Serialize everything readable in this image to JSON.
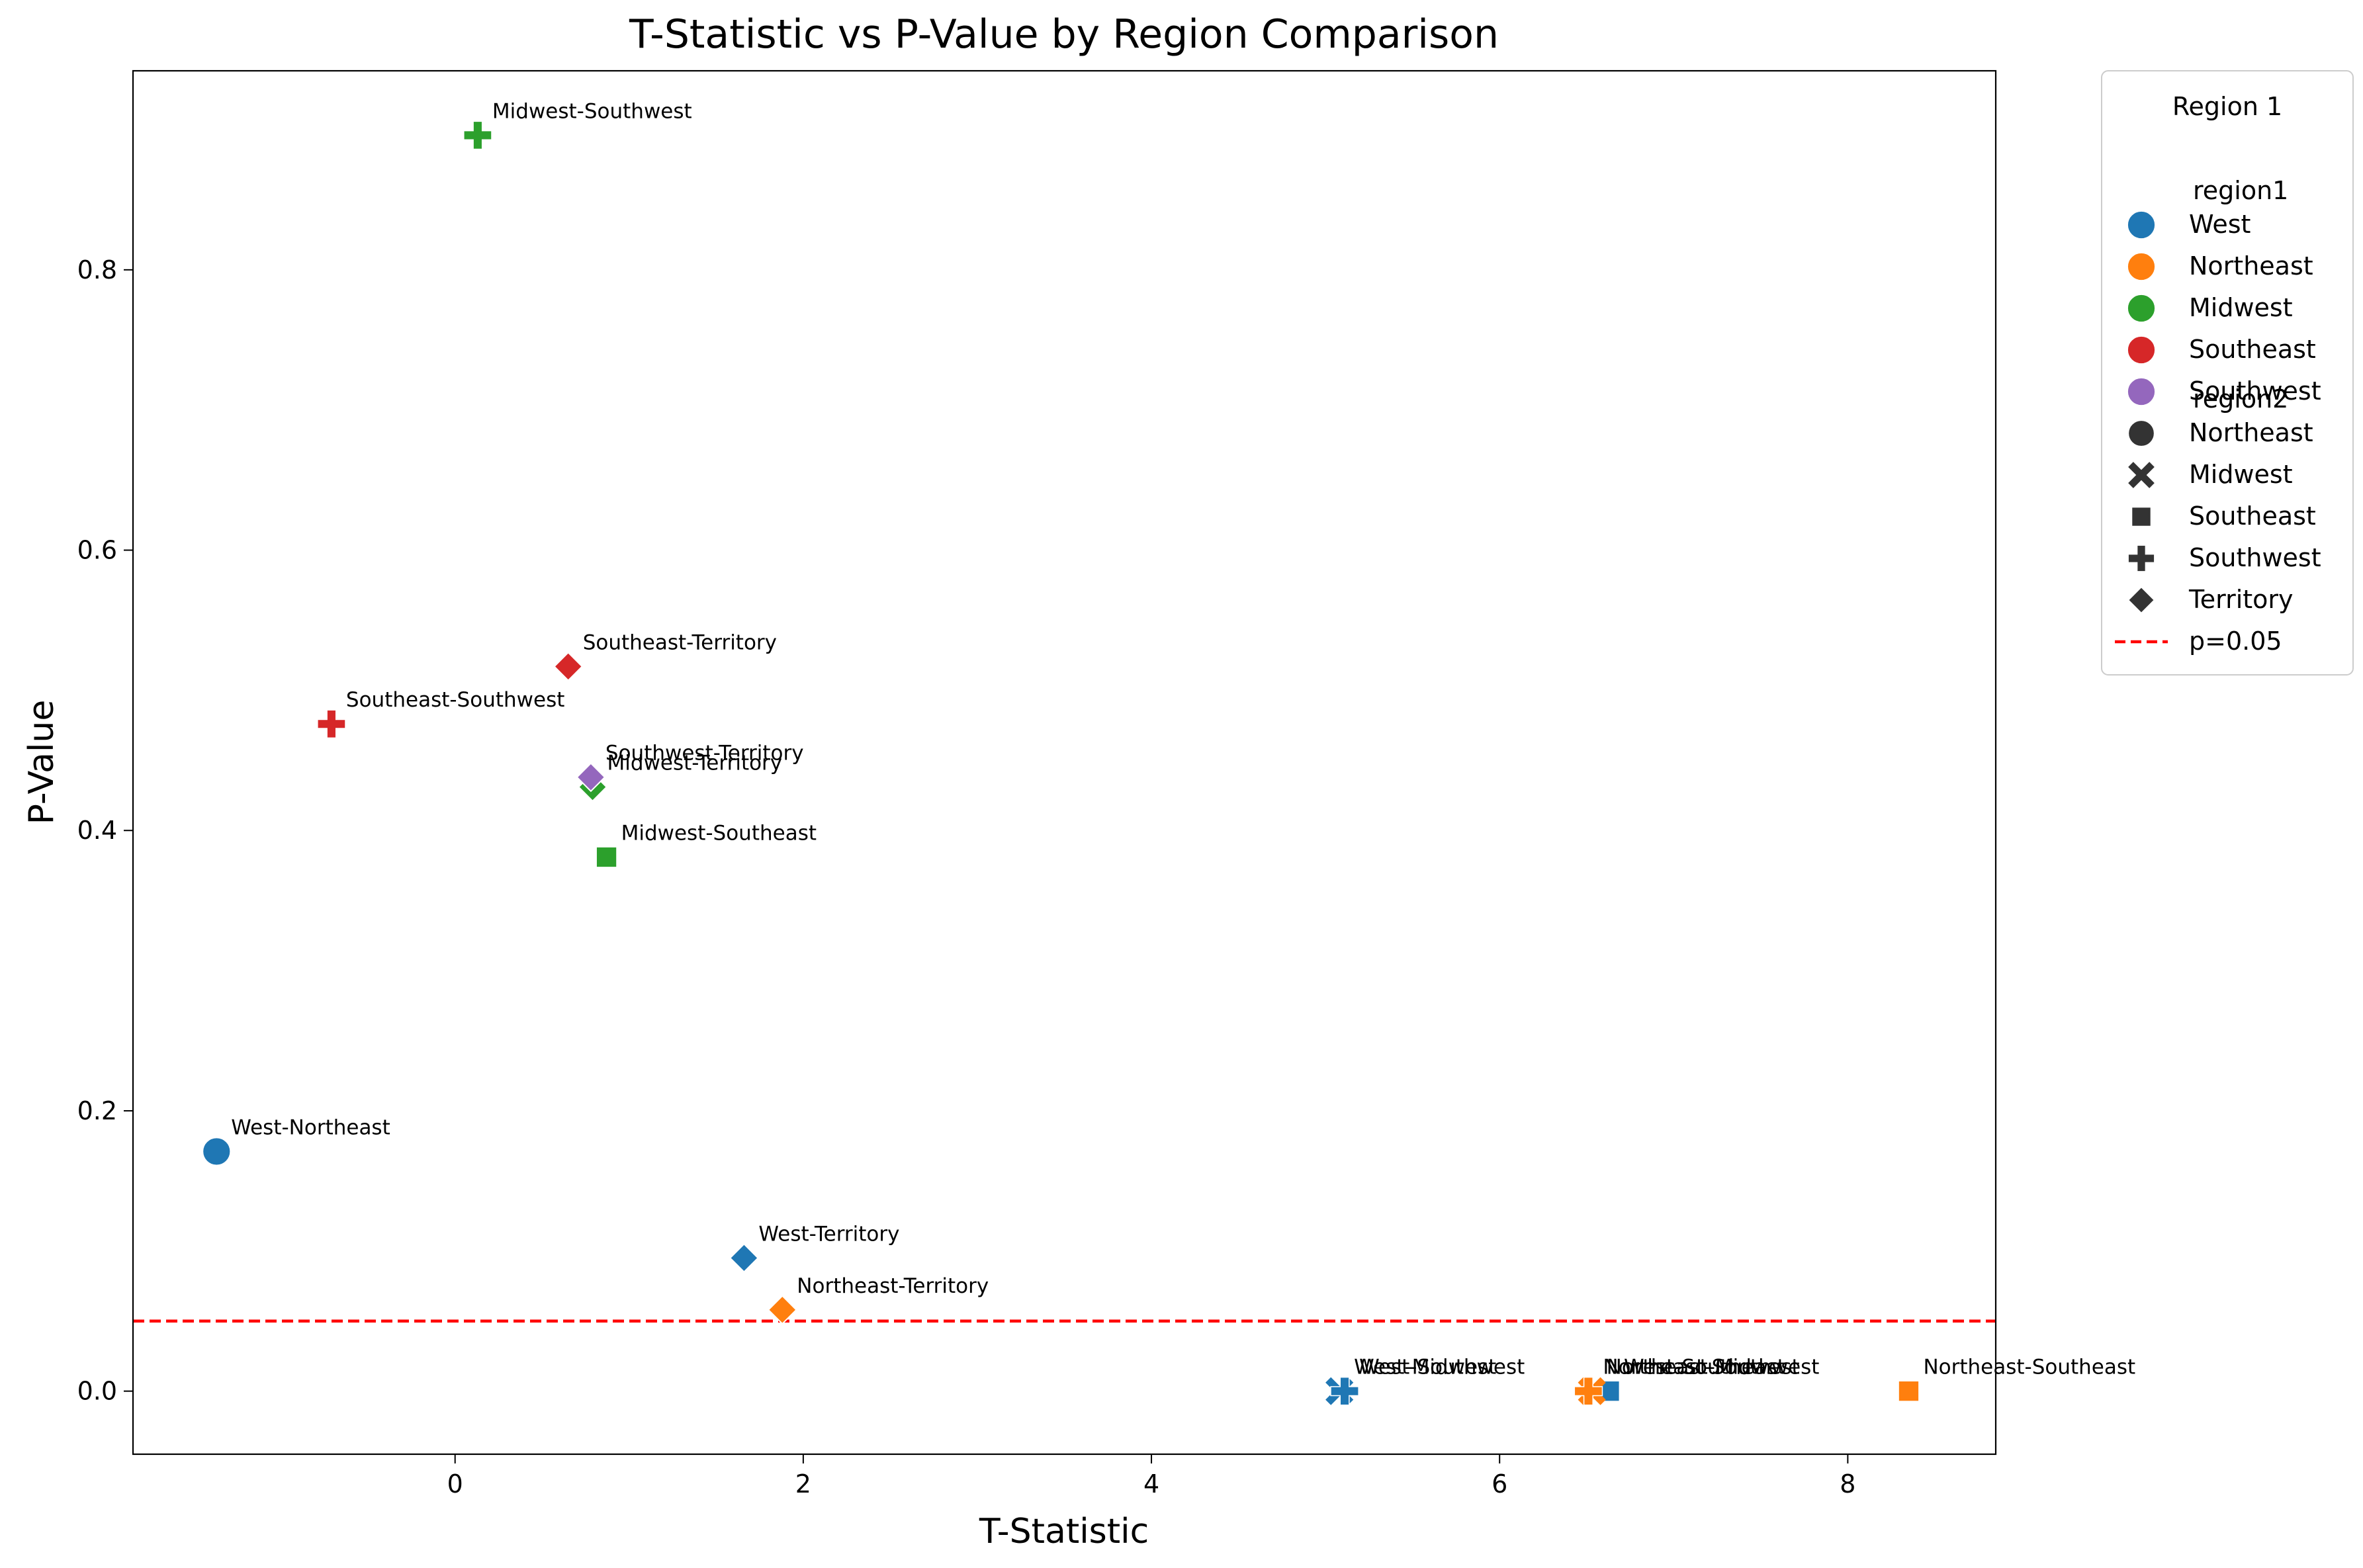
{
  "chart_data": {
    "type": "scatter",
    "title": "T-Statistic vs P-Value by Region Comparison",
    "xlabel": "T-Statistic",
    "ylabel": "P-Value",
    "xlim": [
      -1.85,
      8.85
    ],
    "ylim": [
      -0.045,
      0.942
    ],
    "xticks": [
      0,
      2,
      4,
      6,
      8
    ],
    "yticks": [
      0.0,
      0.2,
      0.4,
      0.6,
      0.8
    ],
    "xtick_labels": [
      "0",
      "2",
      "4",
      "6",
      "8"
    ],
    "ytick_labels": [
      "0.0",
      "0.2",
      "0.4",
      "0.6",
      "0.8"
    ],
    "grid": false,
    "legend_placement": "outside-top-right",
    "legend": {
      "title": "Region 1",
      "hue_header": "region1",
      "hue": [
        {
          "label": "West",
          "color": "#1f77b4"
        },
        {
          "label": "Northeast",
          "color": "#ff7f0e"
        },
        {
          "label": "Midwest",
          "color": "#2ca02c"
        },
        {
          "label": "Southeast",
          "color": "#d62728"
        },
        {
          "label": "Southwest",
          "color": "#9467bd"
        }
      ],
      "style_header": "region2",
      "style": [
        {
          "label": "Northeast",
          "marker": "circle"
        },
        {
          "label": "Midwest",
          "marker": "x"
        },
        {
          "label": "Southeast",
          "marker": "square"
        },
        {
          "label": "Southwest",
          "marker": "plus"
        },
        {
          "label": "Territory",
          "marker": "diamond"
        }
      ],
      "line_label": "p=0.05"
    },
    "threshold": {
      "y": 0.05,
      "color": "#ff0000",
      "label": "p=0.05"
    },
    "points": [
      {
        "label": "West-Northeast",
        "region1": "West",
        "region2": "Northeast",
        "x": -1.37,
        "y": 0.171
      },
      {
        "label": "West-Midwest",
        "region1": "West",
        "region2": "Midwest",
        "x": 5.08,
        "y": 0.0
      },
      {
        "label": "West-Southeast",
        "region1": "West",
        "region2": "Southeast",
        "x": 6.63,
        "y": 0.0
      },
      {
        "label": "West-Southwest",
        "region1": "West",
        "region2": "Southwest",
        "x": 5.11,
        "y": 0.0
      },
      {
        "label": "West-Territory",
        "region1": "West",
        "region2": "Territory",
        "x": 1.66,
        "y": 0.095
      },
      {
        "label": "Northeast-Midwest",
        "region1": "Northeast",
        "region2": "Midwest",
        "x": 6.53,
        "y": 0.0
      },
      {
        "label": "Northeast-Southeast",
        "region1": "Northeast",
        "region2": "Southeast",
        "x": 8.35,
        "y": 0.0
      },
      {
        "label": "Northeast-Southwest",
        "region1": "Northeast",
        "region2": "Southwest",
        "x": 6.51,
        "y": 0.0
      },
      {
        "label": "Northeast-Territory",
        "region1": "Northeast",
        "region2": "Territory",
        "x": 1.88,
        "y": 0.058
      },
      {
        "label": "Midwest-Southeast",
        "region1": "Midwest",
        "region2": "Southeast",
        "x": 0.87,
        "y": 0.381
      },
      {
        "label": "Midwest-Southwest",
        "region1": "Midwest",
        "region2": "Southwest",
        "x": 0.13,
        "y": 0.896
      },
      {
        "label": "Midwest-Territory",
        "region1": "Midwest",
        "region2": "Territory",
        "x": 0.79,
        "y": 0.431
      },
      {
        "label": "Southeast-Southwest",
        "region1": "Southeast",
        "region2": "Southwest",
        "x": -0.71,
        "y": 0.476
      },
      {
        "label": "Southeast-Territory",
        "region1": "Southeast",
        "region2": "Territory",
        "x": 0.65,
        "y": 0.517
      },
      {
        "label": "Southwest-Territory",
        "region1": "Southwest",
        "region2": "Territory",
        "x": 0.78,
        "y": 0.438
      }
    ]
  }
}
